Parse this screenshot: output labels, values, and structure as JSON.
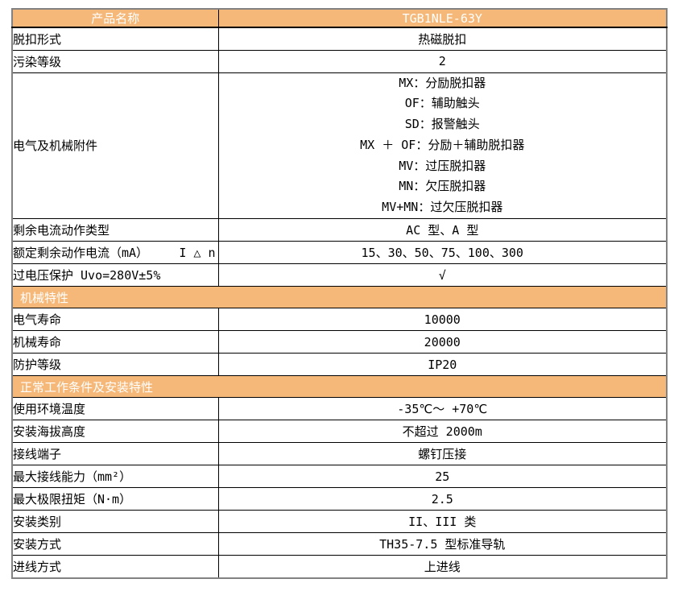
{
  "colors": {
    "accent_orange": "#f6b878",
    "header_text": "#ffffff",
    "body_text": "#000000",
    "outer_border": "#828282",
    "inner_border": "#000000"
  },
  "table": {
    "header": {
      "left": "产品名称",
      "right": "TGB1NLE-63Y"
    },
    "rows": [
      {
        "type": "row",
        "label": "脱扣形式",
        "value": "热磁脱扣"
      },
      {
        "type": "row",
        "label": "污染等级",
        "value": "2"
      },
      {
        "type": "big",
        "label": "电气及机械附件",
        "value_lines": [
          "MX：分励脱扣器",
          "OF：辅助触头",
          "SD：报警触头",
          "MX ＋ OF：分励＋辅助脱扣器",
          "MV：过压脱扣器",
          "MN：欠压脱扣器",
          "MV+MN：过欠压脱扣器"
        ]
      },
      {
        "type": "row",
        "label": "剩余电流动作类型",
        "value": "AC 型、A 型"
      },
      {
        "type": "row",
        "label": "额定剩余动作电流（mA）",
        "label_right": "I △ n",
        "value": "15、30、50、75、100、300"
      },
      {
        "type": "row",
        "label": "过电压保护 Uvo=280V±5%",
        "value": "√"
      },
      {
        "type": "section",
        "label": "机械特性"
      },
      {
        "type": "row",
        "label": "电气寿命",
        "value": "10000"
      },
      {
        "type": "row",
        "label": "机械寿命",
        "value": "20000"
      },
      {
        "type": "row",
        "label": "防护等级",
        "value": "IP20"
      },
      {
        "type": "section",
        "label": "正常工作条件及安装特性"
      },
      {
        "type": "row",
        "label": "使用环境温度",
        "value": "-35℃～ +70℃"
      },
      {
        "type": "row",
        "label": "安装海拔高度",
        "value": "不超过 2000m"
      },
      {
        "type": "row",
        "label": "接线端子",
        "value": "螺钉压接"
      },
      {
        "type": "row",
        "label": "最大接线能力（mm²）",
        "value": "25"
      },
      {
        "type": "row",
        "label": "最大极限扭矩（N·m）",
        "value": "2.5"
      },
      {
        "type": "row",
        "label": "安装类别",
        "value": "II、III 类"
      },
      {
        "type": "row",
        "label": "安装方式",
        "value": "TH35-7.5 型标准导轨"
      },
      {
        "type": "row",
        "label": "进线方式",
        "value": "上进线"
      }
    ]
  }
}
